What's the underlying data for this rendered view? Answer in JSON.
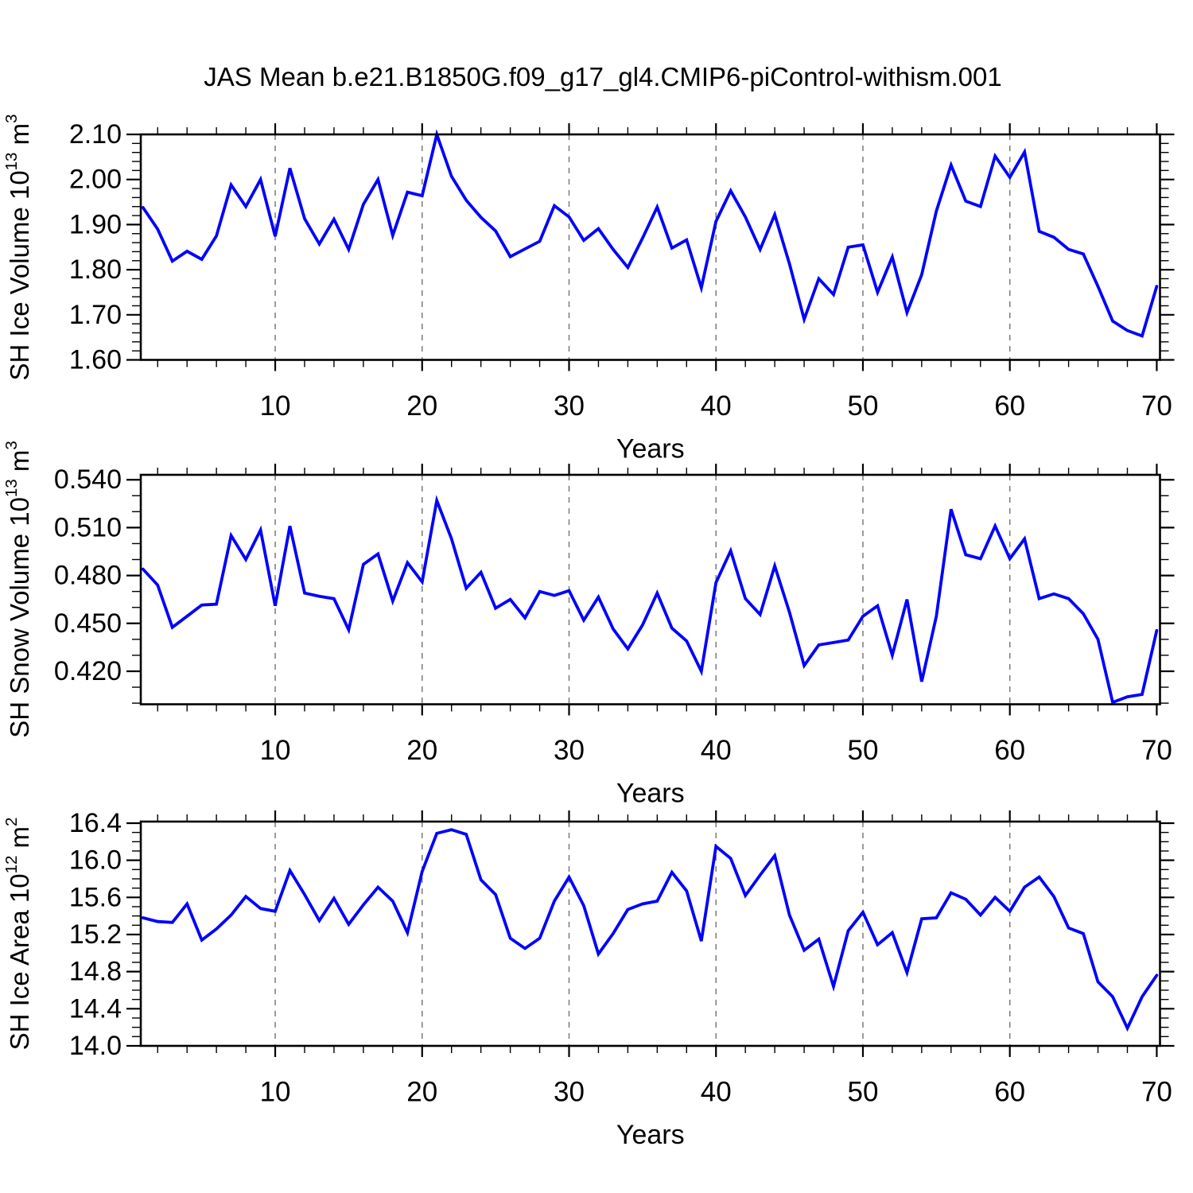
{
  "title": "JAS Mean b.e21.B1850G.f09_g17_gl4.CMIP6-piControl-withism.001",
  "colors": {
    "line": "#0000ff",
    "axis": "#000000",
    "grid": "#7a7a7a",
    "text": "#000000"
  },
  "x_axis": {
    "label": "Years",
    "major_ticks": [
      10,
      20,
      30,
      40,
      50,
      60,
      70
    ],
    "minor_step": 2,
    "grid_years": [
      10,
      20,
      30,
      40,
      50,
      60
    ],
    "xlim": [
      0.85,
      70.22
    ]
  },
  "chart_data": [
    {
      "type": "line",
      "name": "sh-ice-volume",
      "ylabel_text": "SH Ice Volume 10^13 m^3",
      "ylabel_parts": [
        {
          "t": "SH Ice Volume 10"
        },
        {
          "t": "13",
          "sup": true
        },
        {
          "t": " m"
        },
        {
          "t": "3",
          "sup": true
        }
      ],
      "xlabel": "Years",
      "ylim": [
        1.6,
        2.1
      ],
      "ytick_values": [
        1.6,
        1.7,
        1.8,
        1.9,
        2.0,
        2.1
      ],
      "ytick_labels": [
        "1.60",
        "1.70",
        "1.80",
        "1.90",
        "2.00",
        "2.10"
      ],
      "y_minor_step": 0.02,
      "x": [
        1,
        2,
        3,
        4,
        5,
        6,
        7,
        8,
        9,
        10,
        11,
        12,
        13,
        14,
        15,
        16,
        17,
        18,
        19,
        20,
        21,
        22,
        23,
        24,
        25,
        26,
        27,
        28,
        29,
        30,
        31,
        32,
        33,
        34,
        35,
        36,
        37,
        38,
        39,
        40,
        41,
        42,
        43,
        44,
        45,
        46,
        47,
        48,
        49,
        50,
        51,
        52,
        53,
        54,
        55,
        56,
        57,
        58,
        59,
        60,
        61,
        62,
        63,
        64,
        65,
        66,
        67,
        68,
        69,
        70
      ],
      "values": [
        1.938,
        1.89,
        1.819,
        1.841,
        1.823,
        1.875,
        1.988,
        1.94,
        2.0,
        1.874,
        2.025,
        1.913,
        1.857,
        1.912,
        1.845,
        1.945,
        2.0,
        1.876,
        1.972,
        1.964,
        2.1,
        2.007,
        1.954,
        1.916,
        1.886,
        1.829,
        1.846,
        1.863,
        1.942,
        1.917,
        1.865,
        1.891,
        1.845,
        1.805,
        1.87,
        1.939,
        1.848,
        1.866,
        1.76,
        1.907,
        1.975,
        1.917,
        1.845,
        1.922,
        1.813,
        1.69,
        1.78,
        1.745,
        1.85,
        1.855,
        1.75,
        1.828,
        1.705,
        1.789,
        1.93,
        2.032,
        1.952,
        1.94,
        2.052,
        2.005,
        2.061,
        1.885,
        1.872,
        1.845,
        1.835,
        1.763,
        1.686,
        1.665,
        1.653,
        1.763
      ]
    },
    {
      "type": "line",
      "name": "sh-snow-volume",
      "ylabel_text": "SH Snow Volume 10^13 m^3",
      "ylabel_parts": [
        {
          "t": "SH Snow Volume 10"
        },
        {
          "t": "13",
          "sup": true
        },
        {
          "t": " m"
        },
        {
          "t": "3",
          "sup": true
        }
      ],
      "xlabel": "Years",
      "ylim": [
        0.3993,
        0.5431
      ],
      "ytick_values": [
        0.42,
        0.45,
        0.48,
        0.51,
        0.54
      ],
      "ytick_labels": [
        "0.420",
        "0.450",
        "0.480",
        "0.510",
        "0.540"
      ],
      "y_minor_step": 0.01,
      "x": [
        1,
        2,
        3,
        4,
        5,
        6,
        7,
        8,
        9,
        10,
        11,
        12,
        13,
        14,
        15,
        16,
        17,
        18,
        19,
        20,
        21,
        22,
        23,
        24,
        25,
        26,
        27,
        28,
        29,
        30,
        31,
        32,
        33,
        34,
        35,
        36,
        37,
        38,
        39,
        40,
        41,
        42,
        43,
        44,
        45,
        46,
        47,
        48,
        49,
        50,
        51,
        52,
        53,
        54,
        55,
        56,
        57,
        58,
        59,
        60,
        61,
        62,
        63,
        64,
        65,
        66,
        67,
        68,
        69,
        70
      ],
      "values": [
        0.484,
        0.474,
        0.4475,
        0.4545,
        0.4615,
        0.462,
        0.505,
        0.49,
        0.5085,
        0.461,
        0.511,
        0.469,
        0.467,
        0.4655,
        0.446,
        0.487,
        0.4935,
        0.464,
        0.488,
        0.476,
        0.527,
        0.503,
        0.472,
        0.482,
        0.4595,
        0.465,
        0.4535,
        0.47,
        0.4675,
        0.4705,
        0.452,
        0.4665,
        0.4465,
        0.434,
        0.449,
        0.469,
        0.447,
        0.439,
        0.42,
        0.4755,
        0.4955,
        0.4655,
        0.4555,
        0.486,
        0.457,
        0.4235,
        0.4365,
        0.438,
        0.4395,
        0.4545,
        0.461,
        0.43,
        0.465,
        0.4135,
        0.4545,
        0.5215,
        0.493,
        0.4905,
        0.511,
        0.4905,
        0.503,
        0.4655,
        0.4685,
        0.4655,
        0.456,
        0.44,
        0.4005,
        0.404,
        0.4055,
        0.4455
      ]
    },
    {
      "type": "line",
      "name": "sh-ice-area",
      "ylabel_text": "SH Ice Area 10^12 m^2",
      "ylabel_parts": [
        {
          "t": "SH Ice Area 10"
        },
        {
          "t": "12",
          "sup": true
        },
        {
          "t": " m"
        },
        {
          "t": "2",
          "sup": true
        }
      ],
      "xlabel": "Years",
      "ylim": [
        14.0,
        16.417
      ],
      "ytick_values": [
        14.0,
        14.4,
        14.8,
        15.2,
        15.6,
        16.0,
        16.4
      ],
      "ytick_labels": [
        "14.0",
        "14.4",
        "14.8",
        "15.2",
        "15.6",
        "16.0",
        "16.4"
      ],
      "y_minor_step": 0.1,
      "x": [
        1,
        2,
        3,
        4,
        5,
        6,
        7,
        8,
        9,
        10,
        11,
        12,
        13,
        14,
        15,
        16,
        17,
        18,
        19,
        20,
        21,
        22,
        23,
        24,
        25,
        26,
        27,
        28,
        29,
        30,
        31,
        32,
        33,
        34,
        35,
        36,
        37,
        38,
        39,
        40,
        41,
        42,
        43,
        44,
        45,
        46,
        47,
        48,
        49,
        50,
        51,
        52,
        53,
        54,
        55,
        56,
        57,
        58,
        59,
        60,
        61,
        62,
        63,
        64,
        65,
        66,
        67,
        68,
        69,
        70
      ],
      "values": [
        15.38,
        15.34,
        15.33,
        15.53,
        15.14,
        15.26,
        15.41,
        15.61,
        15.48,
        15.45,
        15.89,
        15.63,
        15.35,
        15.59,
        15.31,
        15.52,
        15.71,
        15.56,
        15.22,
        15.88,
        16.29,
        16.33,
        16.28,
        15.79,
        15.63,
        15.16,
        15.05,
        15.16,
        15.56,
        15.82,
        15.51,
        14.99,
        15.21,
        15.47,
        15.53,
        15.56,
        15.87,
        15.67,
        15.13,
        16.15,
        16.02,
        15.62,
        15.84,
        16.05,
        15.41,
        15.03,
        15.15,
        14.64,
        15.24,
        15.44,
        15.09,
        15.22,
        14.79,
        15.37,
        15.38,
        15.65,
        15.58,
        15.41,
        15.6,
        15.45,
        15.71,
        15.82,
        15.61,
        15.27,
        15.21,
        14.69,
        14.53,
        14.19,
        14.53,
        14.76
      ]
    }
  ]
}
